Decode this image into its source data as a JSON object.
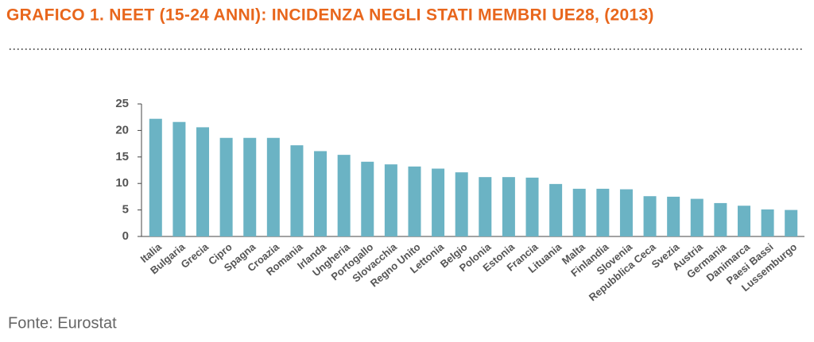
{
  "chart_data": {
    "type": "bar",
    "title": "GRAFICO 1. NEET (15-24 ANNI): INCIDENZA NEGLI STATI MEMBRI UE28, (2013)",
    "source": "Fonte: Eurostat",
    "categories": [
      "Italia",
      "Bulgaria",
      "Grecia",
      "Cipro",
      "Spagna",
      "Croazia",
      "Romania",
      "Irlanda",
      "Ungheria",
      "Portogallo",
      "Slovacchia",
      "Regno Unito",
      "Lettonia",
      "Belgio",
      "Polonia",
      "Estonia",
      "Francia",
      "Lituania",
      "Malta",
      "Finlandia",
      "Slovenia",
      "Repubblica Ceca",
      "Svezia",
      "Austria",
      "Germania",
      "Danimarca",
      "Paesi Bassi",
      "Lussemburgo"
    ],
    "values": [
      22.2,
      21.6,
      20.6,
      18.6,
      18.6,
      18.6,
      17.2,
      16.1,
      15.4,
      14.1,
      13.6,
      13.2,
      12.8,
      12.1,
      11.2,
      11.2,
      11.1,
      9.9,
      9.0,
      9.0,
      8.9,
      7.6,
      7.5,
      7.1,
      6.3,
      5.8,
      5.1,
      5.0
    ],
    "color": "#6bb3c4",
    "ylim": [
      0,
      25
    ],
    "yticks": [
      0,
      5,
      10,
      15,
      20,
      25
    ],
    "grid": false
  }
}
